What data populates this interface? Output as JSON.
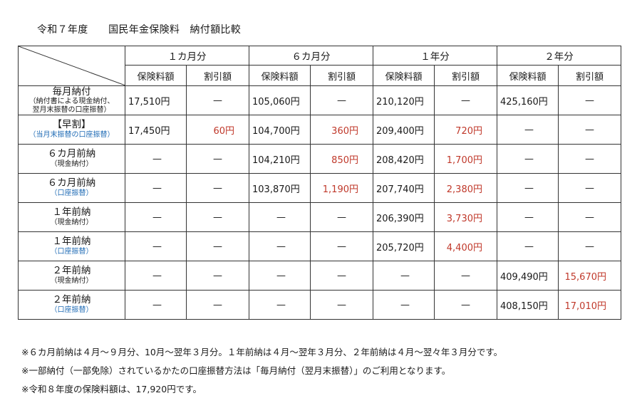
{
  "title": "令和７年度　　国民年金保険料　納付額比較",
  "periods": [
    "１カ月分",
    "６カ月分",
    "１年分",
    "２年分"
  ],
  "subheaders": [
    "保険料額",
    "割引額",
    "保険料額",
    "割引額",
    "保険料額",
    "割引額",
    "保険料額",
    "割引額"
  ],
  "rows": [
    {
      "label": "毎月納付",
      "sub": [
        "（納付書による現金納付、",
        "翌月末振替の口座振替）"
      ],
      "sub_color": "black",
      "cells": [
        "17,510円",
        "—",
        "105,060円",
        "—",
        "210,120円",
        "—",
        "425,160円",
        "—"
      ]
    },
    {
      "label": "【早割】",
      "sub": [
        "（当月末振替の口座振替）"
      ],
      "sub_color": "blue",
      "cells": [
        "17,450円",
        "60円",
        "104,700円",
        "360円",
        "209,400円",
        "720円",
        "—",
        "—"
      ]
    },
    {
      "label": "６カ月前納",
      "sub": [
        "（現金納付）"
      ],
      "sub_color": "black",
      "cells": [
        "—",
        "—",
        "104,210円",
        "850円",
        "208,420円",
        "1,700円",
        "—",
        "—"
      ]
    },
    {
      "label": "６カ月前納",
      "sub": [
        "（口座振替）"
      ],
      "sub_color": "blue",
      "cells": [
        "—",
        "—",
        "103,870円",
        "1,190円",
        "207,740円",
        "2,380円",
        "—",
        "—"
      ]
    },
    {
      "label": "１年前納",
      "sub": [
        "（現金納付）"
      ],
      "sub_color": "black",
      "cells": [
        "—",
        "—",
        "—",
        "—",
        "206,390円",
        "3,730円",
        "—",
        "—"
      ]
    },
    {
      "label": "１年前納",
      "sub": [
        "（口座振替）"
      ],
      "sub_color": "blue",
      "cells": [
        "—",
        "—",
        "—",
        "—",
        "205,720円",
        "4,400円",
        "—",
        "—"
      ]
    },
    {
      "label": "２年前納",
      "sub": [
        "（現金納付）"
      ],
      "sub_color": "black",
      "cells": [
        "—",
        "—",
        "—",
        "—",
        "—",
        "—",
        "409,490円",
        "15,670円"
      ]
    },
    {
      "label": "２年前納",
      "sub": [
        "（口座振替）"
      ],
      "sub_color": "blue",
      "cells": [
        "—",
        "—",
        "—",
        "—",
        "—",
        "—",
        "408,150円",
        "17,010円"
      ]
    }
  ],
  "notes": [
    "※６カ月前納は４月～９月分、10月～翌年３月分。１年前納は４月～翌年３月分、２年前納は４月～翌々年３月分です。",
    "※一部納付（一部免除）されているかたの口座振替方法は「毎月納付（翌月末振替）」のご利用となります。",
    "※令和８年度の保険料額は、17,920円です。"
  ],
  "colors": {
    "discount_red": "#c0392b",
    "bank_transfer_blue": "#1f6bb5",
    "border": "#333333"
  }
}
